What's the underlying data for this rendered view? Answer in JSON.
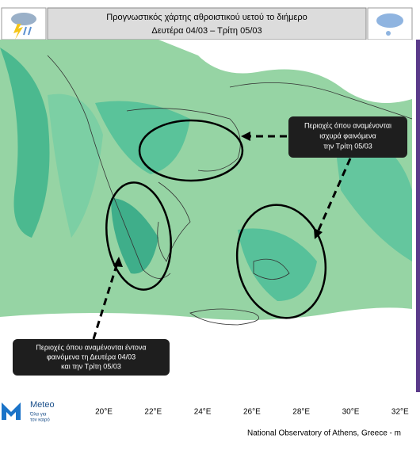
{
  "header": {
    "title_lines": [
      "Προγνωστικός χάρτης αθροιστικού υετού το διήμερο",
      "Δευτέρα 04/03 – Τρίτη 05/03"
    ]
  },
  "callouts": [
    {
      "lines": [
        "Περιοχές όπου αναμένονται",
        "ισχυρά φαινόμενα",
        "την Τρίτη 05/03"
      ]
    },
    {
      "lines": [
        "Περιοχές όπου αναμένονται έντονα",
        "φαινόμενα τη Δευτέρα 04/03",
        "και την Τρίτη 05/03"
      ]
    }
  ],
  "axis": {
    "lon_labels": [
      "20°E",
      "22°E",
      "24°E",
      "26°E",
      "28°E",
      "30°E",
      "32°E"
    ]
  },
  "logo": {
    "name": "Meteo",
    "tagline_lines": [
      "Όλα για",
      "τον καιρό"
    ]
  },
  "footer": {
    "credit": "National Observatory of Athens, Greece - m"
  }
}
